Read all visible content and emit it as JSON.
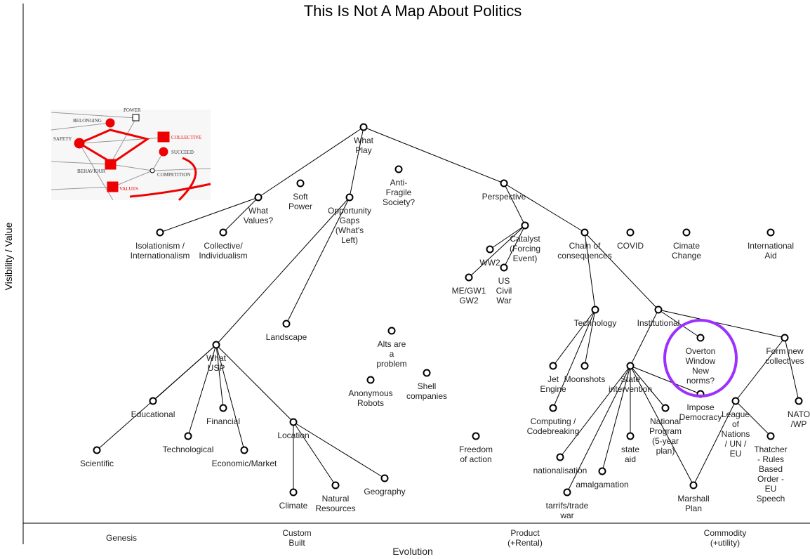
{
  "title": "This Is Not A Map About Politics",
  "axes": {
    "y_label": "Visibility / Value",
    "x_label": "Evolution",
    "stages": [
      "Genesis",
      "Custom\nBuilt",
      "Product\n(+Rental)",
      "Commodity\n(+utility)"
    ]
  },
  "nodes": [
    {
      "label": "What\nPlay"
    },
    {
      "label": "What\nValues?"
    },
    {
      "label": "Soft\nPower"
    },
    {
      "label": "Opportunity\nGaps\n(What's\nLeft)"
    },
    {
      "label": "Anti-\nFragile\nSociety?"
    },
    {
      "label": "Perspective"
    },
    {
      "label": "Isolationism /\nInternationalism"
    },
    {
      "label": "Collective/\nIndividualism"
    },
    {
      "label": "Catalyst\n(Forcing\nEvent)"
    },
    {
      "label": "Chain of\nconsequences"
    },
    {
      "label": "COVID"
    },
    {
      "label": "Cimate\nChange"
    },
    {
      "label": "International\nAid"
    },
    {
      "label": "WW2"
    },
    {
      "label": "US\nCivil\nWar"
    },
    {
      "label": "ME/GW1\nGW2"
    },
    {
      "label": "Technology"
    },
    {
      "label": "Institutional"
    },
    {
      "label": "Landscape"
    },
    {
      "label": "Alts are\na\nproblem"
    },
    {
      "label": "Overton\nWindow\nNew\nnorms?"
    },
    {
      "label": "Form new\ncollectives"
    },
    {
      "label": "What\nUSP"
    },
    {
      "label": "Anonymous\nRobots"
    },
    {
      "label": "Shell\ncompanies"
    },
    {
      "label": "Jet\nEngine"
    },
    {
      "label": "Moonshots"
    },
    {
      "label": "State\nintervention"
    },
    {
      "label": "Impose\nDemocracy"
    },
    {
      "label": "League\nof\nNations\n/ UN /\nEU"
    },
    {
      "label": "National\nProgram\n(5-year\nplan)"
    },
    {
      "label": "Computing /\nCodebreaking"
    },
    {
      "label": "NATO\n/WP"
    },
    {
      "label": "Educational"
    },
    {
      "label": "Financial"
    },
    {
      "label": "Technological"
    },
    {
      "label": "Economic/Market"
    },
    {
      "label": "Scientific"
    },
    {
      "label": "Location"
    },
    {
      "label": "Freedom\nof action"
    },
    {
      "label": "state\naid"
    },
    {
      "label": "Thatcher\n- Rules\nBased\nOrder -\nEU\nSpeech"
    },
    {
      "label": "nationalisation"
    },
    {
      "label": "amalgamation"
    },
    {
      "label": "Geography"
    },
    {
      "label": "Natural\nResources"
    },
    {
      "label": "Climate"
    },
    {
      "label": "tarrifs/trade\nwar"
    },
    {
      "label": "Marshall\nPlan"
    }
  ],
  "links": [
    [
      0,
      1
    ],
    [
      0,
      3
    ],
    [
      0,
      5
    ],
    [
      1,
      6
    ],
    [
      1,
      7
    ],
    [
      3,
      18
    ],
    [
      3,
      22
    ],
    [
      5,
      8
    ],
    [
      5,
      9
    ],
    [
      8,
      13
    ],
    [
      8,
      14
    ],
    [
      8,
      15
    ],
    [
      9,
      16
    ],
    [
      9,
      17
    ],
    [
      16,
      25
    ],
    [
      16,
      26
    ],
    [
      16,
      31
    ],
    [
      17,
      20
    ],
    [
      17,
      21
    ],
    [
      17,
      27
    ],
    [
      27,
      28
    ],
    [
      27,
      30
    ],
    [
      27,
      40
    ],
    [
      27,
      42
    ],
    [
      27,
      43
    ],
    [
      27,
      47
    ],
    [
      27,
      48
    ],
    [
      21,
      32
    ],
    [
      21,
      29
    ],
    [
      29,
      48
    ],
    [
      29,
      41
    ],
    [
      22,
      33
    ],
    [
      22,
      34
    ],
    [
      22,
      35
    ],
    [
      22,
      36
    ],
    [
      22,
      37
    ],
    [
      22,
      38
    ],
    [
      38,
      44
    ],
    [
      38,
      45
    ],
    [
      38,
      46
    ]
  ],
  "inset": {
    "labels": [
      "POWER",
      "BELONGING",
      "SAFETY",
      "COLLECTIVE",
      "SUCCEED",
      "BEHAVIOUR",
      "COMPETITION",
      "VALUES"
    ]
  }
}
